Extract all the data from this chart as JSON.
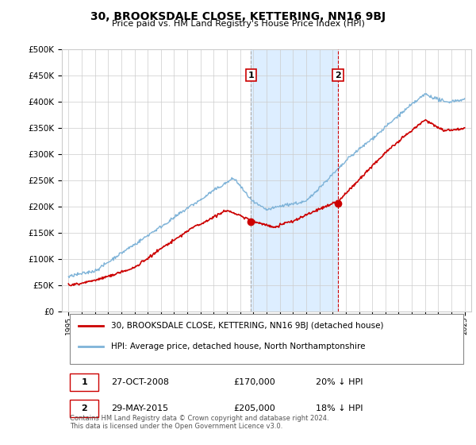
{
  "title": "30, BROOKSDALE CLOSE, KETTERING, NN16 9BJ",
  "subtitle": "Price paid vs. HM Land Registry's House Price Index (HPI)",
  "legend_line1": "30, BROOKSDALE CLOSE, KETTERING, NN16 9BJ (detached house)",
  "legend_line2": "HPI: Average price, detached house, North Northamptonshire",
  "transaction1_label": "1",
  "transaction1_date": "27-OCT-2008",
  "transaction1_price": "£170,000",
  "transaction1_hpi": "20% ↓ HPI",
  "transaction2_label": "2",
  "transaction2_date": "29-MAY-2015",
  "transaction2_price": "£205,000",
  "transaction2_hpi": "18% ↓ HPI",
  "copyright": "Contains HM Land Registry data © Crown copyright and database right 2024.\nThis data is licensed under the Open Government Licence v3.0.",
  "price_line_color": "#cc0000",
  "hpi_line_color": "#7eb3d8",
  "highlight_color": "#ddeeff",
  "transaction1_x": 2008.82,
  "transaction2_x": 2015.41,
  "t1_vline_color": "#aaaaaa",
  "t2_vline_color": "#cc0000",
  "ylim_min": 0,
  "ylim_max": 500000,
  "xlim_min": 1994.5,
  "xlim_max": 2025.5,
  "yticks": [
    0,
    50000,
    100000,
    150000,
    200000,
    250000,
    300000,
    350000,
    400000,
    450000,
    500000
  ],
  "xticks": [
    1995,
    1996,
    1997,
    1998,
    1999,
    2000,
    2001,
    2002,
    2003,
    2004,
    2005,
    2006,
    2007,
    2008,
    2009,
    2010,
    2011,
    2012,
    2013,
    2014,
    2015,
    2016,
    2017,
    2018,
    2019,
    2020,
    2021,
    2022,
    2023,
    2024,
    2025
  ]
}
